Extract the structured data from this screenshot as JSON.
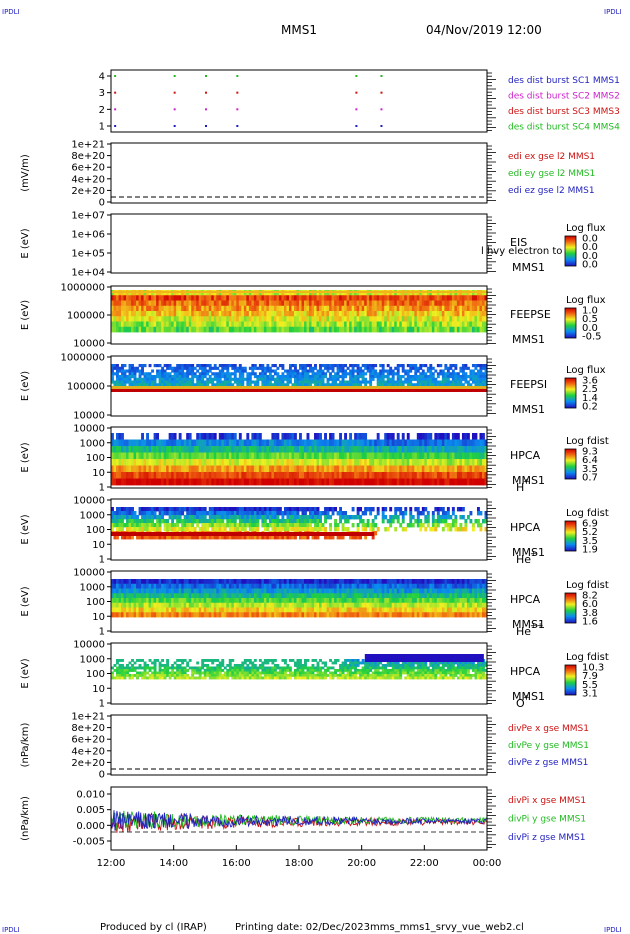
{
  "header": {
    "corner_left_top": "IPDLI",
    "corner_right_top": "IPDLI",
    "mission": "MMS1",
    "datetime": "04/Nov/2019 12:00",
    "corner_left_bottom": "IPDLI",
    "corner_right_bottom": "IPDLI"
  },
  "footer": {
    "produced_by": "Produced by cl (IRAP)",
    "printing_date": "Printing date: 02/Dec/2023",
    "script_name": "mms_mms1_srvy_vue_web2.cl"
  },
  "chart_data": {
    "type": "multi-panel time series",
    "x_ticks": [
      "12:00",
      "14:00",
      "16:00",
      "18:00",
      "20:00",
      "22:00",
      "00:00"
    ],
    "x_range_hours": [
      12,
      24
    ],
    "panels": [
      {
        "id": "burst",
        "kind": "burst",
        "y_ticks": [
          "4",
          "3",
          "2",
          "1"
        ],
        "legend": [
          {
            "text": "des dist burst SC1 MMS1",
            "color": "#1f1fbf"
          },
          {
            "text": "des dist burst SC2 MMS2",
            "color": "#cc22cc"
          },
          {
            "text": "des dist burst SC3 MMS3",
            "color": "#cc1111"
          },
          {
            "text": "des dist burst SC4 MMS4",
            "color": "#22bb22"
          }
        ],
        "burst_hours": [
          12.1,
          14.0,
          15.0,
          16.0,
          19.8,
          20.6
        ]
      },
      {
        "id": "edi",
        "kind": "line-empty",
        "ylabel": "(mV/m)",
        "y_ticks": [
          "1e+21",
          "8e+20",
          "6e+20",
          "4e+20",
          "2e+20",
          "0"
        ],
        "legend": [
          {
            "text": "edi ex gse l2 MMS1",
            "color": "#cc1111"
          },
          {
            "text": "edi ey gse l2 MMS1",
            "color": "#22bb22"
          },
          {
            "text": "edi ez gse l2 MMS1",
            "color": "#1f1fbf"
          }
        ]
      },
      {
        "id": "eis",
        "kind": "spectrogram-empty",
        "ylabel": "E (eV)",
        "y_ticks": [
          "1e+07",
          "1e+06",
          "1e+05",
          "1e+04"
        ],
        "instrument": [
          "EIS",
          "MMS1"
        ],
        "overlay_text": "l hvy electron to",
        "cbar_title": "Log flux",
        "cbar_ticks": [
          "0.0",
          "0.0",
          "0.0",
          "0.0"
        ]
      },
      {
        "id": "feepse",
        "kind": "spectrogram",
        "ylabel": "E (eV)",
        "y_ticks": [
          "1000000",
          "100000",
          "10000"
        ],
        "instrument": [
          "FEEPSE",
          "MMS1"
        ],
        "cbar_title": "Log flux",
        "cbar_ticks": [
          "1.0",
          "0.5",
          "0.0",
          "-0.5"
        ]
      },
      {
        "id": "feepsi",
        "kind": "spectrogram",
        "ylabel": "E (eV)",
        "y_ticks": [
          "1000000",
          "100000",
          "10000"
        ],
        "instrument": [
          "FEEPSI",
          "MMS1"
        ],
        "cbar_title": "Log flux",
        "cbar_ticks": [
          "3.6",
          "2.5",
          "1.4",
          "0.2"
        ]
      },
      {
        "id": "hpca_h",
        "kind": "spectrogram",
        "ylabel": "E (eV)",
        "y_ticks": [
          "10000",
          "1000",
          "100",
          "10",
          "1"
        ],
        "instrument": [
          "HPCA",
          "MMS1"
        ],
        "species": "H",
        "species_charge": "+",
        "cbar_title": "Log fdist",
        "cbar_ticks": [
          "9.3",
          "6.4",
          "3.5",
          "0.7"
        ]
      },
      {
        "id": "hpca_he",
        "kind": "spectrogram",
        "ylabel": "E (eV)",
        "y_ticks": [
          "10000",
          "1000",
          "100",
          "10",
          "1"
        ],
        "instrument": [
          "HPCA",
          "MMS1"
        ],
        "species": "He",
        "species_charge": "+",
        "cbar_title": "Log fdist",
        "cbar_ticks": [
          "6.9",
          "5.2",
          "3.5",
          "1.9"
        ]
      },
      {
        "id": "hpca_hepp",
        "kind": "spectrogram",
        "ylabel": "E (eV)",
        "y_ticks": [
          "10000",
          "1000",
          "100",
          "10",
          "1"
        ],
        "instrument": [
          "HPCA",
          "MMS1"
        ],
        "species": "He",
        "species_charge": "++",
        "cbar_title": "Log fdist",
        "cbar_ticks": [
          "8.2",
          "6.0",
          "3.8",
          "1.6"
        ]
      },
      {
        "id": "hpca_o",
        "kind": "spectrogram",
        "ylabel": "E (eV)",
        "y_ticks": [
          "10000",
          "1000",
          "100",
          "10",
          "1"
        ],
        "instrument": [
          "HPCA",
          "MMS1"
        ],
        "species": "O",
        "species_charge": "+",
        "cbar_title": "Log fdist",
        "cbar_ticks": [
          "10.3",
          "7.9",
          "5.5",
          "3.1"
        ]
      },
      {
        "id": "divpe",
        "kind": "line-empty",
        "ylabel": "(nPa/km)",
        "y_ticks": [
          "1e+21",
          "8e+20",
          "6e+20",
          "4e+20",
          "2e+20",
          "0"
        ],
        "legend": [
          {
            "text": "divPe x gse MMS1",
            "color": "#cc1111"
          },
          {
            "text": "divPe y gse MMS1",
            "color": "#22bb22"
          },
          {
            "text": "divPe z gse MMS1",
            "color": "#1f1fbf"
          }
        ]
      },
      {
        "id": "divpi",
        "kind": "line",
        "ylabel": "(nPa/km)",
        "y_ticks": [
          "0.010",
          "0.005",
          "0.000",
          "-0.005"
        ],
        "y_range": [
          -0.009,
          0.012
        ],
        "legend": [
          {
            "text": "divPi x gse MMS1",
            "color": "#cc1111"
          },
          {
            "text": "divPi y gse MMS1",
            "color": "#22bb22"
          },
          {
            "text": "divPi z gse MMS1",
            "color": "#1f1fbf"
          }
        ]
      }
    ]
  }
}
